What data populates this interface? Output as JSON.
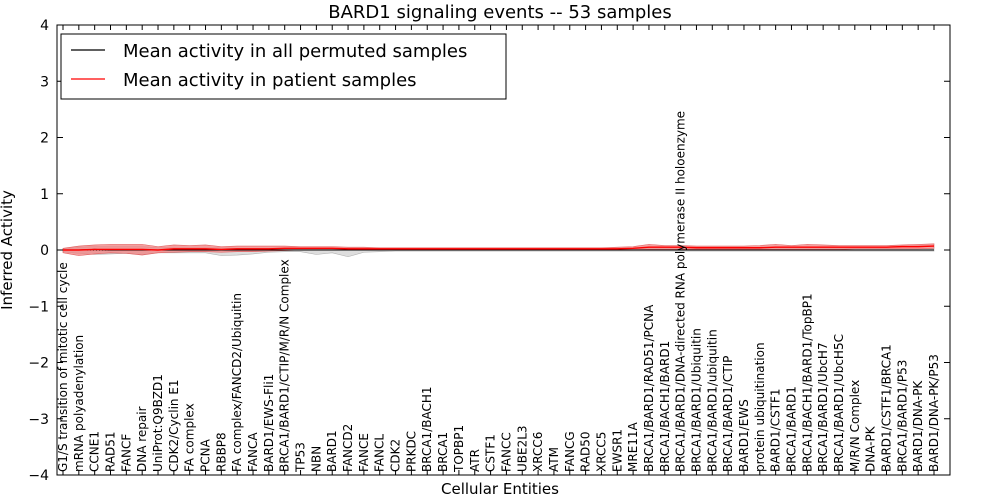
{
  "chart_data": {
    "type": "line",
    "title": "BARD1 signaling events -- 53 samples",
    "xlabel": "Cellular Entities",
    "ylabel": "Inferred Activity",
    "ylim": [
      -4,
      4
    ],
    "yticks": [
      "4",
      "3",
      "2",
      "1",
      "0",
      "−1",
      "−2",
      "−3",
      "−4"
    ],
    "ytick_values": [
      4,
      3,
      2,
      1,
      0,
      -1,
      -2,
      -3,
      -4
    ],
    "grid": false,
    "legend_position": "top-left",
    "legend": [
      {
        "label": "Mean activity in all permuted samples",
        "color": "#000000"
      },
      {
        "label": "Mean activity in patient samples",
        "color": "#ff0000"
      }
    ],
    "categories": [
      "G1/S transition of mitotic cell cycle",
      "mRNA polyadenylation",
      "CCNE1",
      "RAD51",
      "FANCF",
      "DNA repair",
      "UniProt:Q9BZD1",
      "CDK2/Cyclin E1",
      "FA complex",
      "PCNA",
      "RBBP8",
      "FA complex/FANCD2/Ubiquitin",
      "FANCA",
      "BARD1/EWS-Fli1",
      "BRCA1/BARD1/CTIP/M/R/N Complex",
      "TP53",
      "NBN",
      "BARD1",
      "FANCD2",
      "FANCE",
      "FANCL",
      "CDK2",
      "PRKDC",
      "BRCA1/BACH1",
      "BRCA1",
      "TOPBP1",
      "ATR",
      "CSTF1",
      "FANCC",
      "UBE2L3",
      "XRCC6",
      "ATM",
      "FANCG",
      "RAD50",
      "XRCC5",
      "EWSR1",
      "MRE11A",
      "BRCA1/BARD1/RAD51/PCNA",
      "BRCA1/BACH1/BARD1",
      "BRCA1/BARD1/DNA-directed RNA polymerase II holoenzyme",
      "BRCA1/BARD1/Ubiquitin",
      "BRCA1/BARD1/ubiquitin",
      "BRCA1/BARD1/CTIP",
      "BARD1/EWS",
      "protein ubiquitination",
      "BARD1/CSTF1",
      "BRCA1/BARD1",
      "BRCA1/BACH1/BARD1/TopBP1",
      "BRCA1/BARD1/UbcH7",
      "BRCA1/BARD1/UbcH5C",
      "M/R/N Complex",
      "DNA-PK",
      "BARD1/CSTF1/BRCA1",
      "BRCA1/BARD1/P53",
      "BARD1/DNA-PK",
      "BARD1/DNA-PK/P53"
    ],
    "series": [
      {
        "name": "Mean activity in patient samples",
        "color": "#ff0000",
        "values": [
          0.0,
          0.0,
          0.01,
          0.01,
          0.01,
          0.01,
          0.0,
          0.02,
          0.02,
          0.02,
          0.01,
          0.02,
          0.02,
          0.02,
          0.03,
          0.03,
          0.03,
          0.03,
          0.02,
          0.02,
          0.02,
          0.02,
          0.02,
          0.02,
          0.02,
          0.02,
          0.02,
          0.02,
          0.02,
          0.02,
          0.02,
          0.02,
          0.02,
          0.02,
          0.02,
          0.02,
          0.03,
          0.05,
          0.05,
          0.05,
          0.04,
          0.04,
          0.04,
          0.04,
          0.04,
          0.05,
          0.05,
          0.05,
          0.05,
          0.05,
          0.05,
          0.05,
          0.05,
          0.06,
          0.06,
          0.07
        ],
        "upper": [
          0.03,
          0.07,
          0.09,
          0.1,
          0.1,
          0.1,
          0.06,
          0.09,
          0.08,
          0.09,
          0.06,
          0.07,
          0.07,
          0.07,
          0.07,
          0.06,
          0.06,
          0.06,
          0.05,
          0.05,
          0.04,
          0.04,
          0.04,
          0.04,
          0.04,
          0.04,
          0.04,
          0.04,
          0.04,
          0.04,
          0.04,
          0.04,
          0.04,
          0.04,
          0.04,
          0.05,
          0.06,
          0.1,
          0.08,
          0.08,
          0.07,
          0.07,
          0.07,
          0.07,
          0.08,
          0.1,
          0.08,
          0.1,
          0.09,
          0.08,
          0.08,
          0.08,
          0.08,
          0.09,
          0.1,
          0.11
        ],
        "lower": [
          -0.05,
          -0.1,
          -0.07,
          -0.05,
          -0.06,
          -0.09,
          -0.05,
          -0.04,
          -0.03,
          -0.03,
          -0.04,
          -0.03,
          -0.03,
          -0.02,
          -0.01,
          0.0,
          0.0,
          0.0,
          0.0,
          0.0,
          0.0,
          0.0,
          0.0,
          0.0,
          0.0,
          0.0,
          0.0,
          0.0,
          0.0,
          0.0,
          0.0,
          0.0,
          0.0,
          0.0,
          0.0,
          0.0,
          0.0,
          0.01,
          0.01,
          0.01,
          0.01,
          0.01,
          0.01,
          0.01,
          0.01,
          0.01,
          0.01,
          0.01,
          0.01,
          0.01,
          0.02,
          0.02,
          0.02,
          0.02,
          0.02,
          0.03
        ]
      },
      {
        "name": "Mean activity in all permuted samples",
        "color": "#000000",
        "values": [
          0.0,
          0.0,
          0.01,
          0.0,
          0.0,
          0.0,
          0.0,
          0.0,
          0.0,
          0.0,
          0.0,
          0.0,
          0.0,
          0.0,
          0.0,
          0.0,
          0.0,
          0.0,
          0.0,
          0.0,
          0.0,
          0.0,
          0.0,
          0.0,
          0.0,
          0.0,
          0.0,
          0.0,
          0.0,
          0.0,
          0.0,
          0.0,
          0.0,
          0.0,
          0.0,
          0.0,
          0.0,
          0.0,
          0.0,
          0.0,
          0.0,
          0.0,
          0.0,
          0.0,
          0.0,
          0.0,
          0.0,
          0.0,
          0.0,
          0.0,
          0.0,
          0.0,
          0.0,
          0.0,
          0.0,
          0.0
        ],
        "upper": [
          0.02,
          0.05,
          0.06,
          0.06,
          0.06,
          0.06,
          0.04,
          0.04,
          0.04,
          0.04,
          0.04,
          0.03,
          0.03,
          0.03,
          0.03,
          0.03,
          0.03,
          0.03,
          0.03,
          0.02,
          0.02,
          0.02,
          0.02,
          0.02,
          0.02,
          0.02,
          0.02,
          0.02,
          0.02,
          0.02,
          0.02,
          0.02,
          0.02,
          0.02,
          0.02,
          0.02,
          0.02,
          0.02,
          0.02,
          0.02,
          0.02,
          0.02,
          0.02,
          0.02,
          0.02,
          0.02,
          0.02,
          0.02,
          0.02,
          0.02,
          0.02,
          0.02,
          0.02,
          0.02,
          0.02,
          0.02
        ],
        "lower": [
          -0.03,
          -0.06,
          -0.08,
          -0.07,
          -0.06,
          -0.08,
          -0.05,
          -0.05,
          -0.05,
          -0.05,
          -0.1,
          -0.09,
          -0.07,
          -0.04,
          -0.03,
          -0.03,
          -0.08,
          -0.05,
          -0.12,
          -0.04,
          -0.03,
          -0.02,
          -0.02,
          -0.02,
          -0.02,
          -0.02,
          -0.02,
          -0.02,
          -0.02,
          -0.02,
          -0.02,
          -0.02,
          -0.02,
          -0.02,
          -0.02,
          -0.02,
          -0.02,
          -0.02,
          -0.02,
          -0.02,
          -0.02,
          -0.02,
          -0.02,
          -0.02,
          -0.02,
          -0.02,
          -0.02,
          -0.02,
          -0.02,
          -0.02,
          -0.02,
          -0.02,
          -0.02,
          -0.02,
          -0.02,
          -0.02
        ]
      }
    ]
  }
}
